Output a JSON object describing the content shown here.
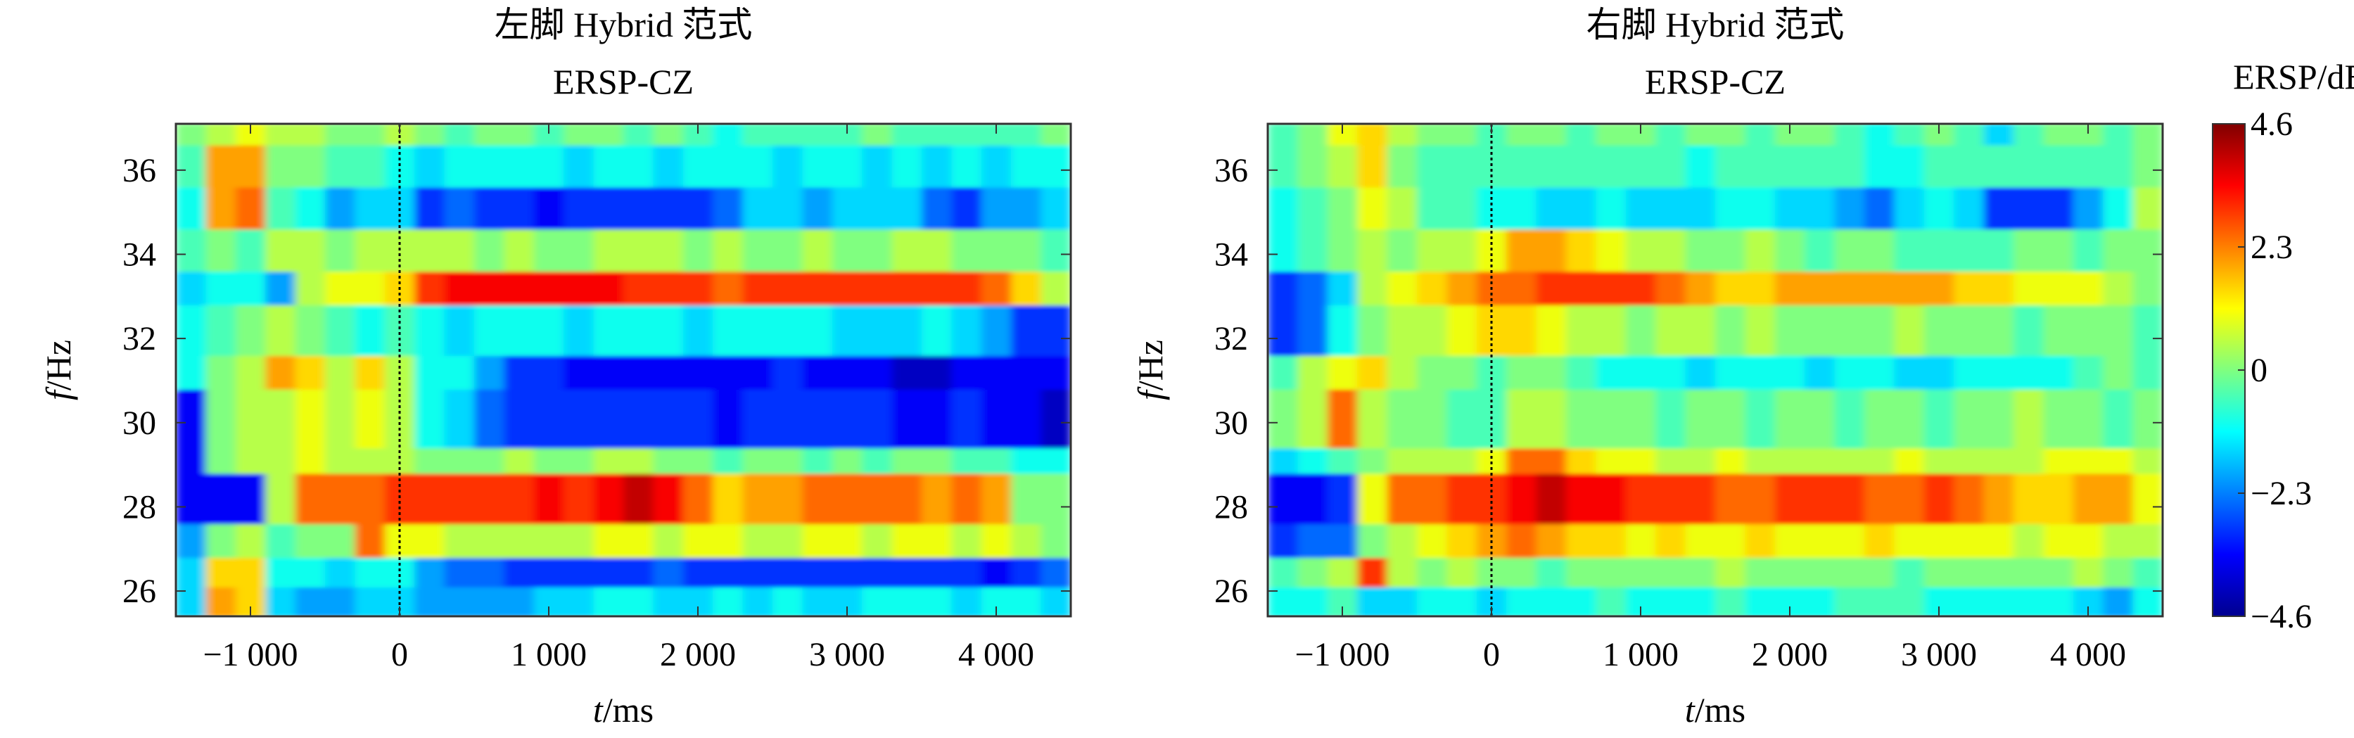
{
  "colorbar": {
    "label": "ERSP/dB",
    "min": -4.6,
    "max": 4.6,
    "ticks": [
      4.6,
      2.3,
      0,
      -2.3,
      -4.6
    ],
    "tick_labels": [
      "4.6",
      "2.3",
      "0",
      "−2.3",
      "−4.6"
    ]
  },
  "chart_data": [
    {
      "type": "heatmap",
      "title": "左脚 Hybrid 范式",
      "subtitle": "ERSP-CZ",
      "xlabel_var": "t",
      "xlabel_unit": "/ms",
      "ylabel_var": "f",
      "ylabel_unit": "/Hz",
      "xlim": [
        -1500,
        4500
      ],
      "ylim": [
        25.4,
        37.1
      ],
      "xticks": [
        -1000,
        0,
        1000,
        2000,
        3000,
        4000
      ],
      "xtick_labels": [
        "−1 000",
        "0",
        "1 000",
        "2 000",
        "3 000",
        "4 000"
      ],
      "yticks": [
        26,
        28,
        30,
        32,
        34,
        36
      ],
      "ytick_labels": [
        "26",
        "28",
        "30",
        "32",
        "34",
        "36"
      ],
      "event_line_x": 0,
      "time_bins_ms": [
        -1500,
        -1300,
        -1100,
        -900,
        -700,
        -500,
        -300,
        -100,
        100,
        300,
        500,
        700,
        900,
        1100,
        1300,
        1500,
        1700,
        1900,
        2100,
        2300,
        2500,
        2700,
        2900,
        3100,
        3300,
        3500,
        3700,
        3900,
        4100,
        4300,
        4500
      ],
      "freq_bins_hz": [
        25.4,
        26.1,
        26.8,
        27.6,
        28.8,
        29.4,
        30.8,
        31.6,
        32.8,
        33.6,
        34.6,
        35.6,
        36.6,
        37.1
      ],
      "ersp_db": [
        [
          -1.5,
          2.0,
          1.5,
          -1.5,
          -2.0,
          -2.0,
          -1.5,
          -1.5,
          -2.0,
          -2.0,
          -2.0,
          -2.0,
          -1.5,
          -1.5,
          -1.0,
          -1.0,
          -1.5,
          -1.5,
          -1.0,
          -1.5,
          -1.0,
          -1.5,
          -1.5,
          -1.0,
          -1.0,
          -1.0,
          -1.5,
          -1.0,
          -1.0,
          -1.5
        ],
        [
          -1.5,
          1.5,
          1.5,
          -1.0,
          -1.0,
          -1.5,
          -1.0,
          -1.0,
          -2.0,
          -2.5,
          -2.5,
          -3.0,
          -3.0,
          -3.0,
          -3.0,
          -3.0,
          -2.5,
          -3.0,
          -3.0,
          -3.0,
          -3.0,
          -3.0,
          -3.0,
          -3.0,
          -3.0,
          -3.0,
          -3.0,
          -3.5,
          -3.0,
          -2.5
        ],
        [
          -2.0,
          0.0,
          0.5,
          -0.5,
          0.0,
          0.0,
          2.5,
          1.0,
          1.0,
          0.5,
          0.5,
          0.5,
          0.5,
          0.5,
          1.0,
          1.0,
          0.5,
          1.0,
          1.0,
          0.5,
          0.5,
          1.0,
          1.0,
          0.5,
          1.0,
          1.0,
          0.5,
          1.0,
          0.5,
          0.0
        ],
        [
          -3.5,
          -3.5,
          -3.5,
          0.5,
          2.5,
          2.5,
          2.5,
          3.0,
          3.0,
          3.0,
          3.0,
          3.0,
          3.5,
          3.0,
          3.5,
          4.0,
          3.5,
          2.5,
          1.5,
          2.0,
          2.0,
          2.5,
          2.5,
          2.5,
          2.5,
          2.0,
          2.5,
          2.0,
          0.0,
          0.0
        ],
        [
          -3.5,
          0.0,
          0.5,
          0.5,
          1.0,
          0.5,
          0.5,
          0.5,
          0.0,
          0.0,
          0.0,
          0.5,
          0.0,
          0.0,
          0.5,
          0.5,
          0.0,
          0.0,
          -0.5,
          0.0,
          0.0,
          -0.5,
          0.0,
          -0.5,
          0.0,
          0.0,
          -0.5,
          -0.5,
          -1.0,
          -1.0
        ],
        [
          -3.5,
          0.0,
          0.5,
          0.5,
          1.0,
          0.5,
          1.0,
          0.5,
          -1.0,
          -1.5,
          -2.5,
          -3.0,
          -3.0,
          -3.0,
          -3.0,
          -3.0,
          -3.0,
          -3.0,
          -3.5,
          -3.0,
          -3.0,
          -3.0,
          -3.0,
          -3.0,
          -3.5,
          -3.5,
          -3.0,
          -3.5,
          -3.5,
          -4.0
        ],
        [
          -1.0,
          0.0,
          0.5,
          2.0,
          1.5,
          0.5,
          1.5,
          0.5,
          -1.0,
          -1.0,
          -2.0,
          -3.0,
          -3.0,
          -3.5,
          -3.5,
          -3.5,
          -3.5,
          -3.5,
          -3.5,
          -3.5,
          -3.0,
          -3.5,
          -3.5,
          -3.5,
          -4.0,
          -4.0,
          -3.5,
          -3.5,
          -3.5,
          -3.5
        ],
        [
          -1.0,
          -0.5,
          0.0,
          0.5,
          0.0,
          -0.5,
          -1.0,
          -0.5,
          -1.0,
          -1.5,
          -1.0,
          -1.0,
          -1.0,
          -1.5,
          -1.0,
          -1.0,
          -1.0,
          -1.5,
          -1.0,
          -1.0,
          -1.0,
          -1.0,
          -1.5,
          -1.5,
          -1.5,
          -1.0,
          -1.5,
          -2.0,
          -3.0,
          -3.0
        ],
        [
          -1.5,
          -1.0,
          -1.0,
          -2.0,
          0.5,
          1.0,
          1.0,
          1.5,
          3.0,
          3.5,
          3.5,
          3.5,
          3.5,
          3.5,
          3.5,
          3.0,
          3.0,
          3.0,
          2.5,
          3.0,
          3.0,
          3.0,
          3.0,
          3.0,
          3.0,
          3.0,
          3.0,
          2.5,
          1.5,
          0.5
        ],
        [
          -0.5,
          0.0,
          -0.5,
          0.5,
          0.5,
          0.0,
          0.5,
          0.5,
          0.5,
          0.5,
          0.0,
          0.5,
          0.0,
          0.0,
          0.5,
          0.5,
          0.5,
          0.0,
          0.5,
          0.0,
          0.0,
          0.5,
          0.0,
          0.0,
          0.5,
          0.5,
          0.0,
          0.0,
          0.0,
          -0.5
        ],
        [
          -1.0,
          2.0,
          2.5,
          -0.5,
          -1.0,
          -2.0,
          -1.5,
          -1.5,
          -3.0,
          -2.5,
          -3.0,
          -3.0,
          -3.5,
          -3.0,
          -3.0,
          -3.0,
          -3.0,
          -3.0,
          -2.5,
          -1.5,
          -1.5,
          -2.0,
          -1.5,
          -1.5,
          -1.5,
          -2.5,
          -3.0,
          -2.0,
          -2.0,
          -1.5
        ],
        [
          -0.5,
          2.0,
          2.0,
          0.0,
          0.0,
          -0.5,
          -0.5,
          -1.0,
          -1.5,
          -1.0,
          -1.0,
          -1.0,
          -1.0,
          -1.5,
          -1.0,
          -1.0,
          -1.5,
          -1.0,
          -1.0,
          -1.0,
          -1.5,
          -1.0,
          -1.0,
          -1.5,
          -1.0,
          -1.5,
          -1.0,
          -1.5,
          -1.0,
          -1.0
        ],
        [
          0.0,
          0.5,
          1.0,
          0.5,
          0.5,
          0.0,
          0.0,
          0.5,
          0.0,
          -0.5,
          0.0,
          0.0,
          -0.5,
          0.0,
          0.0,
          -0.5,
          0.0,
          -0.5,
          -1.0,
          -0.5,
          -0.5,
          -0.5,
          -0.5,
          0.0,
          -0.5,
          -0.5,
          -0.5,
          -0.5,
          -0.5,
          0.0
        ]
      ]
    },
    {
      "type": "heatmap",
      "title": "右脚 Hybrid 范式",
      "subtitle": "ERSP-CZ",
      "xlabel_var": "t",
      "xlabel_unit": "/ms",
      "ylabel_var": "f",
      "ylabel_unit": "/Hz",
      "xlim": [
        -1500,
        4500
      ],
      "ylim": [
        25.4,
        37.1
      ],
      "xticks": [
        -1000,
        0,
        1000,
        2000,
        3000,
        4000
      ],
      "xtick_labels": [
        "−1 000",
        "0",
        "1 000",
        "2 000",
        "3 000",
        "4 000"
      ],
      "yticks": [
        26,
        28,
        30,
        32,
        34,
        36
      ],
      "ytick_labels": [
        "26",
        "28",
        "30",
        "32",
        "34",
        "36"
      ],
      "event_line_x": 0,
      "time_bins_ms": [
        -1500,
        -1300,
        -1100,
        -900,
        -700,
        -500,
        -300,
        -100,
        100,
        300,
        500,
        700,
        900,
        1100,
        1300,
        1500,
        1700,
        1900,
        2100,
        2300,
        2500,
        2700,
        2900,
        3100,
        3300,
        3500,
        3700,
        3900,
        4100,
        4300,
        4500
      ],
      "freq_bins_hz": [
        25.4,
        26.1,
        26.8,
        27.6,
        28.8,
        29.4,
        30.8,
        31.6,
        32.8,
        33.6,
        34.6,
        35.6,
        36.6,
        37.1
      ],
      "ersp_db": [
        [
          -1.0,
          -1.0,
          -0.5,
          -1.5,
          -1.5,
          -1.0,
          -1.0,
          -1.5,
          -1.0,
          -1.0,
          -1.0,
          -0.5,
          -1.0,
          -1.0,
          -1.0,
          -0.5,
          -1.0,
          -1.0,
          -1.0,
          -0.5,
          -0.5,
          -0.5,
          -1.0,
          -1.0,
          -1.0,
          -1.0,
          -1.0,
          -1.5,
          -2.0,
          -1.0
        ],
        [
          -0.5,
          0.0,
          0.5,
          3.0,
          0.5,
          0.0,
          0.5,
          0.0,
          0.0,
          -0.5,
          0.0,
          0.0,
          0.0,
          0.0,
          0.0,
          0.5,
          0.0,
          0.0,
          0.0,
          0.0,
          0.0,
          -0.5,
          0.0,
          0.0,
          0.0,
          0.0,
          0.0,
          0.5,
          0.0,
          -0.5
        ],
        [
          -3.0,
          -2.5,
          -2.5,
          0.0,
          0.5,
          1.0,
          1.5,
          2.0,
          2.5,
          2.0,
          1.5,
          1.5,
          1.0,
          1.5,
          1.0,
          1.0,
          1.5,
          1.0,
          1.0,
          1.0,
          1.5,
          1.0,
          1.0,
          1.0,
          1.0,
          0.5,
          1.0,
          1.0,
          0.5,
          0.5
        ],
        [
          -3.5,
          -3.5,
          -3.0,
          1.0,
          2.5,
          2.5,
          3.0,
          3.0,
          3.5,
          4.0,
          3.5,
          3.5,
          3.0,
          3.0,
          3.0,
          2.5,
          2.5,
          3.0,
          3.0,
          3.0,
          2.5,
          2.5,
          3.0,
          2.5,
          2.0,
          1.5,
          1.5,
          2.0,
          2.0,
          1.0
        ],
        [
          -1.5,
          -1.0,
          -0.5,
          0.0,
          0.5,
          0.5,
          0.5,
          1.0,
          2.5,
          2.5,
          1.5,
          1.0,
          1.0,
          0.5,
          0.5,
          1.0,
          0.5,
          0.5,
          0.5,
          0.5,
          0.5,
          1.0,
          0.5,
          0.5,
          0.5,
          0.5,
          1.0,
          1.0,
          1.0,
          0.5
        ],
        [
          0.0,
          0.5,
          2.5,
          0.5,
          0.0,
          0.0,
          -0.5,
          -0.5,
          0.5,
          0.5,
          0.0,
          0.0,
          0.0,
          -0.5,
          0.0,
          0.0,
          -0.5,
          0.0,
          0.0,
          -0.5,
          0.0,
          0.0,
          -0.5,
          0.0,
          0.0,
          0.5,
          0.0,
          0.0,
          -0.5,
          0.0
        ],
        [
          -0.5,
          0.5,
          1.0,
          1.5,
          0.5,
          0.0,
          0.0,
          -0.5,
          0.0,
          0.0,
          -0.5,
          -1.0,
          -1.0,
          -1.0,
          -1.5,
          -1.0,
          -1.0,
          -1.0,
          -1.5,
          -1.0,
          -1.0,
          -1.5,
          -1.5,
          -1.0,
          -1.0,
          -1.0,
          -1.0,
          -0.5,
          0.0,
          -0.5
        ],
        [
          -3.0,
          -2.5,
          -1.0,
          0.0,
          0.5,
          0.5,
          1.0,
          1.5,
          1.5,
          1.0,
          0.5,
          0.5,
          0.0,
          0.5,
          0.5,
          0.0,
          0.5,
          0.0,
          0.0,
          0.0,
          0.0,
          0.5,
          0.0,
          0.0,
          0.0,
          -0.5,
          0.0,
          0.0,
          0.0,
          -0.5
        ],
        [
          -3.0,
          -2.5,
          -1.5,
          0.5,
          1.0,
          1.5,
          2.0,
          2.5,
          2.5,
          3.0,
          3.0,
          3.0,
          3.0,
          2.5,
          2.0,
          1.5,
          1.5,
          2.0,
          2.0,
          2.0,
          2.0,
          2.0,
          2.0,
          1.5,
          1.5,
          1.0,
          1.0,
          1.0,
          0.5,
          0.0
        ],
        [
          -1.0,
          -0.5,
          0.0,
          0.5,
          0.0,
          0.5,
          0.5,
          1.0,
          2.0,
          2.0,
          1.5,
          1.0,
          0.5,
          0.5,
          0.0,
          0.0,
          0.5,
          0.0,
          -0.5,
          0.0,
          0.0,
          -0.5,
          -0.5,
          -0.5,
          -0.5,
          0.0,
          0.0,
          -0.5,
          0.0,
          0.0
        ],
        [
          -1.0,
          -0.5,
          0.0,
          1.0,
          0.5,
          -0.5,
          -0.5,
          -1.0,
          -1.0,
          -1.5,
          -1.5,
          -1.0,
          -1.5,
          -1.5,
          -1.5,
          -1.0,
          -1.0,
          -1.5,
          -1.5,
          -2.0,
          -2.5,
          -1.5,
          -1.0,
          -1.5,
          -3.0,
          -3.0,
          -3.0,
          -2.0,
          -1.0,
          0.5
        ],
        [
          -0.5,
          0.0,
          0.5,
          1.5,
          0.0,
          -0.5,
          -0.5,
          -0.5,
          -0.5,
          -0.5,
          -0.5,
          -0.5,
          -0.5,
          -0.5,
          -1.0,
          -0.5,
          -0.5,
          -0.5,
          -0.5,
          -0.5,
          -1.0,
          -1.0,
          -0.5,
          -0.5,
          -0.5,
          -0.5,
          -0.5,
          -0.5,
          -0.5,
          0.0
        ],
        [
          -0.5,
          0.0,
          1.0,
          1.5,
          0.5,
          0.0,
          0.0,
          -0.5,
          0.0,
          0.0,
          -0.5,
          0.0,
          0.0,
          -0.5,
          0.0,
          0.0,
          -0.5,
          0.0,
          0.0,
          -0.5,
          -1.0,
          -0.5,
          0.0,
          -0.5,
          -1.5,
          -0.5,
          0.0,
          0.0,
          -0.5,
          0.0
        ]
      ]
    }
  ]
}
